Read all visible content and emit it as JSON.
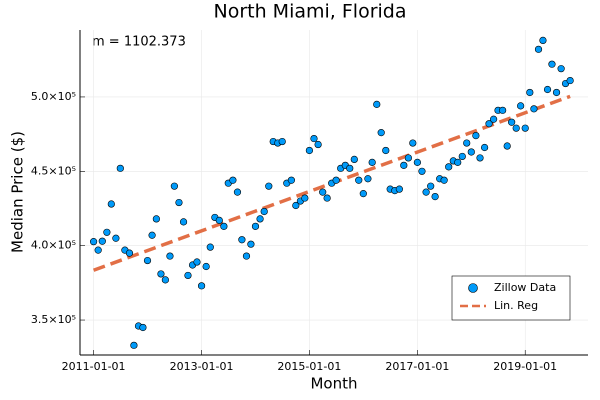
{
  "chart_data": {
    "type": "scatter",
    "title": "North Miami, Florida",
    "xlabel": "Month",
    "ylabel": "Median Price ($)",
    "annotations": [
      "m = 1102.373"
    ],
    "x": [
      "2011-01-01",
      "2011-02-01",
      "2011-03-01",
      "2011-04-01",
      "2011-05-01",
      "2011-06-01",
      "2011-07-01",
      "2011-08-01",
      "2011-09-01",
      "2011-10-01",
      "2011-11-01",
      "2011-12-01",
      "2012-01-01",
      "2012-02-01",
      "2012-03-01",
      "2012-04-01",
      "2012-05-01",
      "2012-06-01",
      "2012-07-01",
      "2012-08-01",
      "2012-09-01",
      "2012-10-01",
      "2012-11-01",
      "2012-12-01",
      "2013-01-01",
      "2013-02-01",
      "2013-03-01",
      "2013-04-01",
      "2013-05-01",
      "2013-06-01",
      "2013-07-01",
      "2013-08-01",
      "2013-09-01",
      "2013-10-01",
      "2013-11-01",
      "2013-12-01",
      "2014-01-01",
      "2014-02-01",
      "2014-03-01",
      "2014-04-01",
      "2014-05-01",
      "2014-06-01",
      "2014-07-01",
      "2014-08-01",
      "2014-09-01",
      "2014-10-01",
      "2014-11-01",
      "2014-12-01",
      "2015-01-01",
      "2015-02-01",
      "2015-03-01",
      "2015-04-01",
      "2015-05-01",
      "2015-06-01",
      "2015-07-01",
      "2015-08-01",
      "2015-09-01",
      "2015-10-01",
      "2015-11-01",
      "2015-12-01",
      "2016-01-01",
      "2016-02-01",
      "2016-03-01",
      "2016-04-01",
      "2016-05-01",
      "2016-06-01",
      "2016-07-01",
      "2016-08-01",
      "2016-09-01",
      "2016-10-01",
      "2016-11-01",
      "2016-12-01",
      "2017-01-01",
      "2017-02-01",
      "2017-03-01",
      "2017-04-01",
      "2017-05-01",
      "2017-06-01",
      "2017-07-01",
      "2017-08-01",
      "2017-09-01",
      "2017-10-01",
      "2017-11-01",
      "2017-12-01",
      "2018-01-01",
      "2018-02-01",
      "2018-03-01",
      "2018-04-01",
      "2018-05-01",
      "2018-06-01",
      "2018-07-01",
      "2018-08-01",
      "2018-09-01",
      "2018-10-01",
      "2018-11-01",
      "2018-12-01",
      "2019-01-01",
      "2019-02-01",
      "2019-03-01",
      "2019-04-01",
      "2019-05-01",
      "2019-06-01",
      "2019-07-01",
      "2019-08-01",
      "2019-09-01",
      "2019-10-01",
      "2019-11-01"
    ],
    "series": [
      {
        "name": "Zillow Data",
        "type": "scatter",
        "color": "#009af9",
        "values": [
          402700,
          397000,
          403000,
          409000,
          428000,
          405000,
          452000,
          397000,
          395000,
          333000,
          346000,
          345000,
          390000,
          407000,
          418000,
          381000,
          377000,
          393000,
          440000,
          429000,
          416000,
          380000,
          387000,
          389000,
          373000,
          386000,
          399000,
          419000,
          417000,
          413000,
          442000,
          444000,
          436000,
          404000,
          393000,
          401000,
          413000,
          418000,
          423000,
          440000,
          470000,
          469000,
          470000,
          442000,
          444000,
          427000,
          430000,
          432000,
          464000,
          472000,
          468000,
          436000,
          432000,
          442000,
          444000,
          452000,
          454000,
          452000,
          458000,
          444000,
          435000,
          445000,
          456000,
          495000,
          476000,
          464000,
          438000,
          437000,
          438000,
          454000,
          459000,
          469000,
          456000,
          450000,
          436000,
          440000,
          433000,
          445000,
          444000,
          453000,
          457000,
          456000,
          460000,
          469000,
          463000,
          474000,
          459000,
          466000,
          482000,
          485000,
          491000,
          491000,
          467000,
          483000,
          479000,
          494000,
          479000,
          503000,
          492000,
          532000,
          538000,
          505000,
          522000,
          503000,
          519000,
          509000,
          511000
        ]
      },
      {
        "name": "Lin. Reg",
        "type": "line",
        "color": "#e26f46",
        "x": [
          "2011-01-01",
          "2019-11-01"
        ],
        "values": [
          383500,
          500400
        ]
      }
    ],
    "xlim": [
      "2010-10-01",
      "2020-03-01"
    ],
    "xticks": [
      "2011-01-01",
      "2013-01-01",
      "2015-01-01",
      "2017-01-01",
      "2019-01-01"
    ],
    "ylim": [
      326500,
      545000
    ],
    "yticks": [
      {
        "value": 350000,
        "label": "3.5×10⁵"
      },
      {
        "value": 400000,
        "label": "4.0×10⁵"
      },
      {
        "value": 450000,
        "label": "4.5×10⁵"
      },
      {
        "value": 500000,
        "label": "5.0×10⁵"
      }
    ],
    "grid": true,
    "legend": "bottom-right"
  }
}
